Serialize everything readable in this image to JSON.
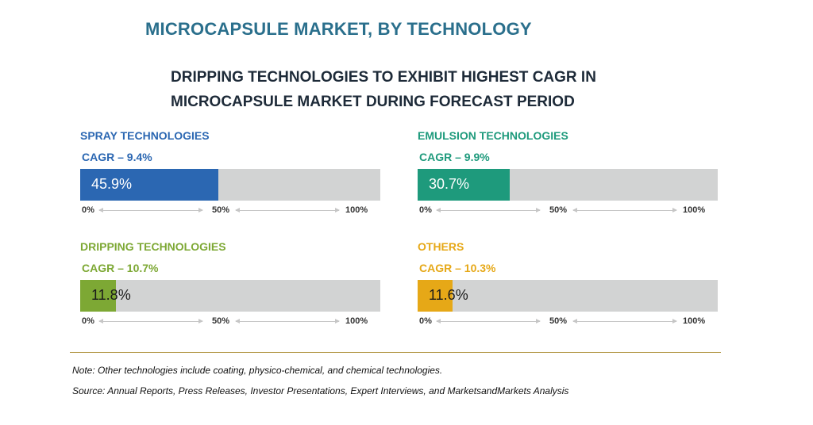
{
  "title": "MICROCAPSULE MARKET, BY TECHNOLOGY",
  "subtitle": "DRIPPING TECHNOLOGIES TO EXHIBIT HIGHEST CAGR IN MICROCAPSULE MARKET DURING FORECAST PERIOD",
  "chart_data": {
    "type": "bar",
    "axis_ticks": [
      "0%",
      "50%",
      "100%"
    ],
    "xlim": [
      0,
      100
    ],
    "series": [
      {
        "name": "SPRAY TECHNOLOGIES",
        "cagr_label": "CAGR – 9.4%",
        "value": 45.9,
        "value_label": "45.9%",
        "color": "#2b67b2",
        "label_color": "#ffffff"
      },
      {
        "name": "EMULSION TECHNOLOGIES",
        "cagr_label": "CAGR – 9.9%",
        "value": 30.7,
        "value_label": "30.7%",
        "color": "#1e9a7c",
        "label_color": "#ffffff"
      },
      {
        "name": "DRIPPING TECHNOLOGIES",
        "cagr_label": "CAGR – 10.7%",
        "value": 11.8,
        "value_label": "11.8%",
        "color": "#7da834",
        "label_color": "#1a1a1a"
      },
      {
        "name": "OTHERS",
        "cagr_label": "CAGR – 10.3%",
        "value": 11.6,
        "value_label": "11.6%",
        "color": "#e6a817",
        "label_color": "#1a1a1a"
      }
    ]
  },
  "notes": {
    "note": "Note: Other technologies include coating, physico-chemical, and chemical technologies.",
    "source": "Source: Annual Reports, Press Releases, Investor Presentations, Expert Interviews, and MarketsandMarkets Analysis"
  }
}
